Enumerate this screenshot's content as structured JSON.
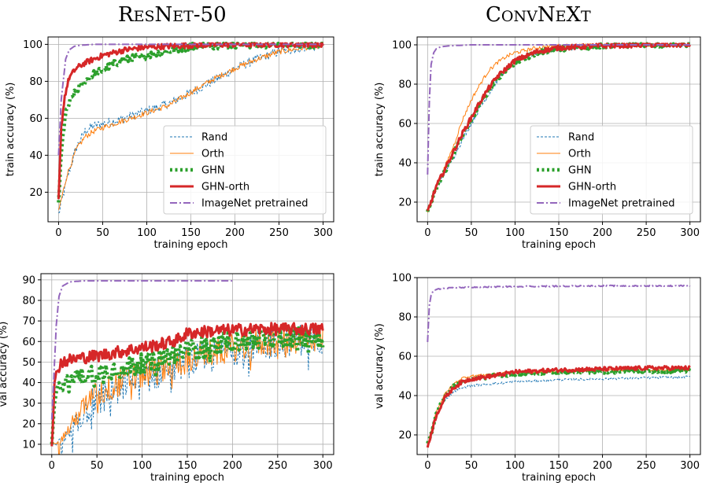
{
  "titles": {
    "left": {
      "parts": [
        {
          "t": "R",
          "big": true
        },
        {
          "t": "ES",
          "big": false
        },
        {
          "t": "N",
          "big": true
        },
        {
          "t": "ET",
          "big": false
        },
        {
          "t": "-50",
          "big": true
        }
      ]
    },
    "right": {
      "parts": [
        {
          "t": "C",
          "big": true
        },
        {
          "t": "ONV",
          "big": false
        },
        {
          "t": "N",
          "big": true
        },
        {
          "t": "E",
          "big": false
        },
        {
          "t": "X",
          "big": true
        },
        {
          "t": "T",
          "big": false
        }
      ]
    }
  },
  "colors": {
    "Rand": "#1f77b4",
    "Orth": "#ff7f0e",
    "GHN": "#2ca02c",
    "GHN-orth": "#d62728",
    "ImageNet pretrained": "#9467bd"
  },
  "chart_data": [
    {
      "id": "resnet-train",
      "type": "line",
      "xlabel": "training epoch",
      "ylabel": "train accuracy (%)",
      "xlim": [
        -12,
        312
      ],
      "ylim": [
        4,
        104
      ],
      "xticks": [
        0,
        50,
        100,
        150,
        200,
        250,
        300
      ],
      "yticks": [
        20,
        40,
        60,
        80,
        100
      ],
      "grid": true,
      "legend": "bottom-right",
      "legend_entries": [
        "Rand",
        "Orth",
        "GHN",
        "GHN-orth",
        "ImageNet pretrained"
      ],
      "series": [
        {
          "name": "Rand",
          "x": [
            0,
            5,
            10,
            20,
            30,
            40,
            50,
            75,
            100,
            125,
            150,
            175,
            200,
            225,
            250,
            275,
            300
          ],
          "y": [
            8,
            18,
            28,
            44,
            53,
            56,
            57,
            60,
            64,
            68,
            74,
            80,
            87,
            92,
            96,
            98,
            99.5
          ],
          "noise": 2.5
        },
        {
          "name": "Orth",
          "x": [
            0,
            5,
            10,
            20,
            30,
            40,
            50,
            75,
            100,
            125,
            150,
            175,
            200,
            225,
            250,
            275,
            300
          ],
          "y": [
            10,
            20,
            30,
            43,
            50,
            53,
            55,
            59,
            63,
            67,
            74,
            81,
            87,
            92,
            96,
            98,
            99.5
          ],
          "noise": 1.5
        },
        {
          "name": "GHN",
          "x": [
            0,
            3,
            7,
            12,
            20,
            30,
            40,
            50,
            70,
            90,
            110,
            130,
            150,
            175,
            200,
            250,
            300
          ],
          "y": [
            15,
            40,
            60,
            68,
            75,
            80,
            84,
            86,
            91,
            93,
            95,
            97,
            99,
            99.5,
            100,
            100,
            100
          ],
          "noise": 2.0
        },
        {
          "name": "GHN-orth",
          "x": [
            0,
            3,
            7,
            12,
            20,
            30,
            40,
            50,
            75,
            100,
            150,
            200,
            300
          ],
          "y": [
            15,
            55,
            72,
            82,
            87,
            90,
            92,
            94,
            97,
            98.5,
            99.5,
            100,
            100
          ],
          "noise": 1.5
        },
        {
          "name": "ImageNet pretrained",
          "x": [
            0,
            3,
            8,
            12,
            18,
            25,
            40,
            100,
            200,
            300
          ],
          "y": [
            40,
            70,
            92,
            97,
            99,
            99.5,
            100,
            100,
            100,
            100
          ],
          "noise": 0
        }
      ]
    },
    {
      "id": "convnext-train",
      "type": "line",
      "xlabel": "training epoch",
      "ylabel": "train accuracy (%)",
      "xlim": [
        -12,
        312
      ],
      "ylim": [
        10,
        104
      ],
      "xticks": [
        0,
        50,
        100,
        150,
        200,
        250,
        300
      ],
      "yticks": [
        20,
        40,
        60,
        80,
        100
      ],
      "grid": true,
      "legend": "bottom-right",
      "legend_entries": [
        "Rand",
        "Orth",
        "GHN",
        "GHN-orth",
        "ImageNet pretrained"
      ],
      "series": [
        {
          "name": "Rand",
          "x": [
            0,
            10,
            20,
            30,
            40,
            50,
            60,
            70,
            80,
            90,
            100,
            125,
            150,
            200,
            250,
            300
          ],
          "y": [
            15,
            27,
            35,
            43,
            52,
            60,
            68,
            75,
            82,
            88,
            92,
            96,
            98,
            99.5,
            100,
            100
          ],
          "noise": 1.2
        },
        {
          "name": "Orth",
          "x": [
            0,
            10,
            20,
            30,
            40,
            50,
            60,
            70,
            80,
            90,
            100,
            125,
            150,
            200,
            250,
            300
          ],
          "y": [
            15,
            28,
            38,
            49,
            62,
            72,
            80,
            87,
            91,
            94,
            96,
            98.5,
            99.5,
            100,
            100,
            100
          ],
          "noise": 1.0
        },
        {
          "name": "GHN",
          "x": [
            0,
            10,
            20,
            30,
            40,
            50,
            60,
            70,
            80,
            90,
            100,
            125,
            150,
            200,
            250,
            300
          ],
          "y": [
            15,
            27,
            36,
            45,
            54,
            62,
            70,
            77,
            83,
            87,
            91,
            96,
            98,
            99.5,
            100,
            100
          ],
          "noise": 1.2
        },
        {
          "name": "GHN-orth",
          "x": [
            0,
            10,
            20,
            30,
            40,
            50,
            60,
            70,
            80,
            90,
            100,
            125,
            150,
            200,
            250,
            300
          ],
          "y": [
            15,
            28,
            37,
            46,
            55,
            63,
            71,
            78,
            84,
            88,
            92,
            96.5,
            98.5,
            99.5,
            100,
            100
          ],
          "noise": 1.2
        },
        {
          "name": "ImageNet pretrained",
          "x": [
            0,
            2,
            4,
            7,
            10,
            15,
            25,
            50,
            100,
            300
          ],
          "y": [
            34,
            72,
            90,
            96,
            98,
            99,
            99.5,
            100,
            100,
            100
          ],
          "noise": 0
        }
      ]
    },
    {
      "id": "resnet-val",
      "type": "line",
      "xlabel": "training epoch",
      "ylabel": "val accuracy (%)",
      "xlim": [
        -12,
        312
      ],
      "ylim": [
        5,
        93
      ],
      "xticks": [
        0,
        50,
        100,
        150,
        200,
        250,
        300
      ],
      "yticks": [
        10,
        20,
        30,
        40,
        50,
        60,
        70,
        80,
        90
      ],
      "grid": true,
      "legend": "none",
      "series": [
        {
          "name": "Rand",
          "x": [
            0,
            10,
            20,
            30,
            40,
            50,
            75,
            100,
            125,
            150,
            175,
            200,
            225,
            250,
            275,
            300
          ],
          "y": [
            10,
            11,
            15,
            22,
            28,
            32,
            38,
            42,
            46,
            50,
            53,
            56,
            58,
            60,
            61,
            62
          ],
          "noise": 8
        },
        {
          "name": "Orth",
          "x": [
            0,
            10,
            20,
            30,
            40,
            50,
            75,
            100,
            125,
            150,
            175,
            200,
            225,
            250,
            275,
            300
          ],
          "y": [
            10,
            12,
            18,
            25,
            30,
            34,
            40,
            44,
            48,
            51,
            54,
            57,
            59,
            60,
            61,
            62
          ],
          "noise": 7
        },
        {
          "name": "GHN",
          "x": [
            0,
            3,
            6,
            10,
            20,
            30,
            50,
            75,
            100,
            125,
            150,
            175,
            200,
            225,
            250,
            275,
            300
          ],
          "y": [
            10,
            30,
            38,
            40,
            42,
            43,
            45,
            47,
            49,
            52,
            56,
            58,
            60,
            61,
            62,
            62,
            62
          ],
          "noise": 5
        },
        {
          "name": "GHN-orth",
          "x": [
            0,
            3,
            6,
            10,
            20,
            30,
            50,
            75,
            100,
            125,
            140,
            150,
            175,
            200,
            225,
            250,
            275,
            300
          ],
          "y": [
            10,
            38,
            46,
            50,
            51,
            52,
            53,
            55,
            57,
            59,
            61,
            64,
            65,
            65.5,
            66,
            66,
            66,
            66
          ],
          "noise": 3
        },
        {
          "name": "ImageNet pretrained",
          "x": [
            0,
            2,
            5,
            8,
            12,
            20,
            35,
            60,
            100,
            200
          ],
          "y": [
            22,
            40,
            68,
            82,
            87,
            89,
            89.5,
            89.5,
            89.5,
            89.5
          ],
          "noise": 0
        }
      ]
    },
    {
      "id": "convnext-val",
      "type": "line",
      "xlabel": "training epoch",
      "ylabel": "val accuracy (%)",
      "xlim": [
        -12,
        312
      ],
      "ylim": [
        10,
        100
      ],
      "xticks": [
        0,
        50,
        100,
        150,
        200,
        250,
        300
      ],
      "yticks": [
        20,
        40,
        60,
        80,
        100
      ],
      "grid": true,
      "legend": "none",
      "series": [
        {
          "name": "Rand",
          "x": [
            0,
            5,
            10,
            20,
            30,
            40,
            50,
            75,
            100,
            150,
            200,
            250,
            300
          ],
          "y": [
            15,
            23,
            30,
            38,
            42,
            44,
            45,
            46,
            47,
            48,
            48.5,
            49,
            49.5
          ],
          "noise": 0.6
        },
        {
          "name": "Orth",
          "x": [
            0,
            5,
            10,
            20,
            30,
            40,
            50,
            75,
            100,
            150,
            200,
            250,
            300
          ],
          "y": [
            15,
            24,
            32,
            41,
            46,
            49,
            50,
            51,
            52,
            52.5,
            53,
            53,
            53
          ],
          "noise": 0.6
        },
        {
          "name": "GHN",
          "x": [
            0,
            5,
            10,
            20,
            30,
            40,
            50,
            75,
            100,
            150,
            200,
            250,
            300
          ],
          "y": [
            15,
            22,
            31,
            40,
            45,
            47,
            48,
            50,
            51,
            52,
            52,
            52.5,
            52.5
          ],
          "noise": 0.8
        },
        {
          "name": "GHN-orth",
          "x": [
            0,
            5,
            10,
            20,
            30,
            40,
            50,
            75,
            100,
            150,
            200,
            250,
            300
          ],
          "y": [
            14,
            22,
            30,
            39,
            44,
            47,
            48.5,
            50,
            52,
            53,
            53.5,
            54,
            54
          ],
          "noise": 1.0
        },
        {
          "name": "ImageNet pretrained",
          "x": [
            0,
            2,
            4,
            6,
            10,
            20,
            40,
            100,
            200,
            300
          ],
          "y": [
            67,
            86,
            91,
            93,
            94,
            94.5,
            95,
            95.5,
            95.8,
            95.8
          ],
          "noise": 0.3
        }
      ]
    }
  ]
}
